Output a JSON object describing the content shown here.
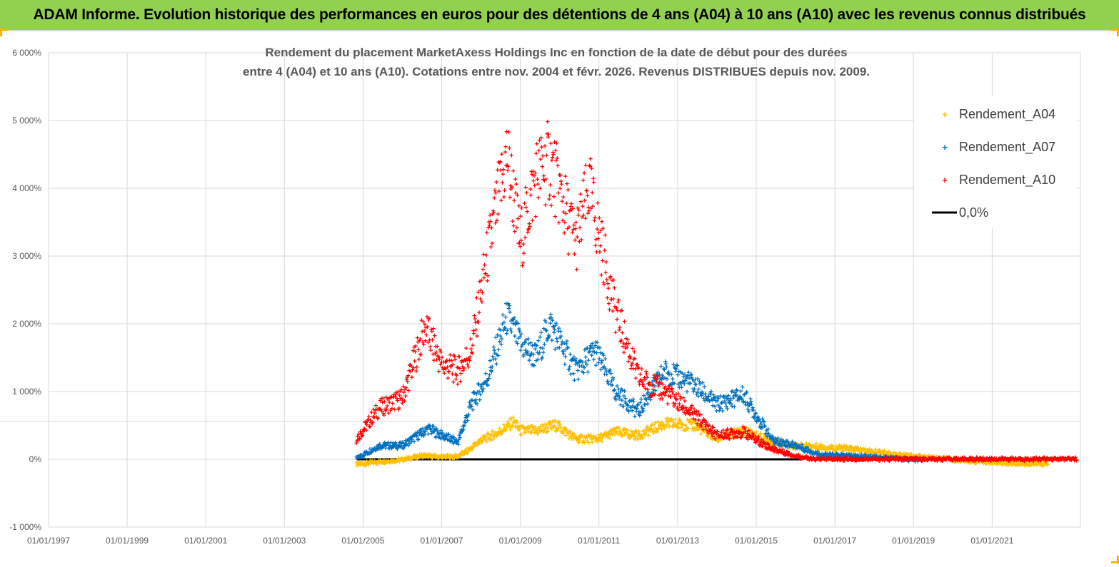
{
  "banner": {
    "title": "ADAM Informe. Evolution historique des performances en euros pour des détentions de 4 ans (A04) à 10 ans (A10) avec les revenus connus distribués"
  },
  "colors": {
    "banner_bg": "#92d050",
    "A04": "#ffc000",
    "A07": "#0070c0",
    "A10": "#ff0000",
    "zero": "#000000"
  },
  "chart_data": {
    "type": "scatter",
    "title": [
      "Rendement du placement MarketAxess Holdings Inc en fonction de la date de début pour des durées",
      "entre 4 (A04) et 10 ans (A10). Cotations entre nov. 2004 et févr. 2026. Revenus DISTRIBUES depuis nov. 2009."
    ],
    "x_axis": {
      "type": "date",
      "min": "1997-01-01",
      "max": "2023-04-01",
      "tick_labels": [
        "01/01/1997",
        "01/01/1999",
        "01/01/2001",
        "01/01/2003",
        "01/01/2005",
        "01/01/2007",
        "01/01/2009",
        "01/01/2011",
        "01/01/2013",
        "01/01/2015",
        "01/01/2017",
        "01/01/2019",
        "01/01/2021"
      ]
    },
    "y_axis": {
      "min": -1000,
      "max": 6000,
      "unit": "%",
      "tick_values": [
        -1000,
        0,
        1000,
        2000,
        3000,
        4000,
        5000,
        6000
      ],
      "tick_labels": [
        "-1 000%",
        "0%",
        "1 000%",
        "2 000%",
        "3 000%",
        "4 000%",
        "5 000%",
        "6 000%"
      ]
    },
    "grid": true,
    "legend_position": "top-right",
    "legend": [
      "Rendement_A04",
      "Rendement_A07",
      "Rendement_A10",
      "0,0%"
    ],
    "series": [
      {
        "name": "Rendement_A04",
        "marker": "+",
        "points": [
          [
            "2004-11-01",
            -80
          ],
          [
            "2005-06-01",
            -40
          ],
          [
            "2006-01-01",
            -10
          ],
          [
            "2006-07-01",
            50
          ],
          [
            "2007-01-01",
            30
          ],
          [
            "2007-06-01",
            40
          ],
          [
            "2007-09-01",
            120
          ],
          [
            "2008-01-01",
            280
          ],
          [
            "2008-06-01",
            380
          ],
          [
            "2008-11-01",
            550
          ],
          [
            "2009-01-01",
            420
          ],
          [
            "2009-06-01",
            420
          ],
          [
            "2009-12-01",
            500
          ],
          [
            "2010-06-01",
            300
          ],
          [
            "2011-01-01",
            300
          ],
          [
            "2011-06-01",
            400
          ],
          [
            "2012-01-01",
            350
          ],
          [
            "2012-09-01",
            520
          ],
          [
            "2013-06-01",
            500
          ],
          [
            "2014-01-01",
            300
          ],
          [
            "2014-09-01",
            420
          ],
          [
            "2015-06-01",
            250
          ],
          [
            "2016-01-01",
            200
          ],
          [
            "2016-09-01",
            180
          ],
          [
            "2017-06-01",
            150
          ],
          [
            "2018-06-01",
            80
          ],
          [
            "2019-06-01",
            20
          ],
          [
            "2020-06-01",
            -30
          ],
          [
            "2021-06-01",
            -60
          ],
          [
            "2022-06-01",
            -70
          ]
        ]
      },
      {
        "name": "Rendement_A07",
        "marker": "+",
        "points": [
          [
            "2004-11-01",
            10
          ],
          [
            "2005-06-01",
            200
          ],
          [
            "2006-01-01",
            200
          ],
          [
            "2006-09-01",
            450
          ],
          [
            "2007-01-01",
            350
          ],
          [
            "2007-06-01",
            250
          ],
          [
            "2007-10-01",
            800
          ],
          [
            "2008-03-01",
            1200
          ],
          [
            "2008-09-01",
            2100
          ],
          [
            "2009-01-01",
            1700
          ],
          [
            "2009-06-01",
            1500
          ],
          [
            "2009-10-01",
            2000
          ],
          [
            "2010-06-01",
            1300
          ],
          [
            "2010-12-01",
            1600
          ],
          [
            "2011-06-01",
            1000
          ],
          [
            "2012-01-01",
            700
          ],
          [
            "2012-09-01",
            1300
          ],
          [
            "2013-06-01",
            1100
          ],
          [
            "2014-01-01",
            800
          ],
          [
            "2014-09-01",
            950
          ],
          [
            "2015-06-01",
            280
          ],
          [
            "2016-01-01",
            200
          ],
          [
            "2016-09-01",
            60
          ],
          [
            "2017-06-01",
            50
          ],
          [
            "2018-06-01",
            20
          ],
          [
            "2019-03-01",
            -20
          ]
        ]
      },
      {
        "name": "Rendement_A10",
        "marker": "+",
        "points": [
          [
            "2004-11-01",
            300
          ],
          [
            "2005-06-01",
            750
          ],
          [
            "2006-01-01",
            900
          ],
          [
            "2006-08-01",
            1950
          ],
          [
            "2007-01-01",
            1400
          ],
          [
            "2007-06-01",
            1300
          ],
          [
            "2007-10-01",
            1600
          ],
          [
            "2008-03-01",
            3000
          ],
          [
            "2008-09-01",
            4500
          ],
          [
            "2009-01-01",
            3200
          ],
          [
            "2009-06-01",
            4200
          ],
          [
            "2009-10-01",
            4400
          ],
          [
            "2010-06-01",
            3200
          ],
          [
            "2010-10-01",
            4000
          ],
          [
            "2011-06-01",
            2200
          ],
          [
            "2012-01-01",
            1200
          ],
          [
            "2012-09-01",
            1000
          ],
          [
            "2013-06-01",
            650
          ],
          [
            "2014-01-01",
            350
          ],
          [
            "2014-09-01",
            400
          ],
          [
            "2015-06-01",
            150
          ],
          [
            "2016-01-01",
            50
          ],
          [
            "2016-06-01",
            0
          ],
          [
            "2018-01-01",
            0
          ],
          [
            "2020-01-01",
            0
          ],
          [
            "2022-01-01",
            0
          ],
          [
            "2023-03-01",
            0
          ]
        ]
      },
      {
        "name": "0,0%",
        "type": "line",
        "points": [
          [
            "2004-11-01",
            0
          ],
          [
            "2016-03-01",
            0
          ]
        ]
      }
    ]
  }
}
